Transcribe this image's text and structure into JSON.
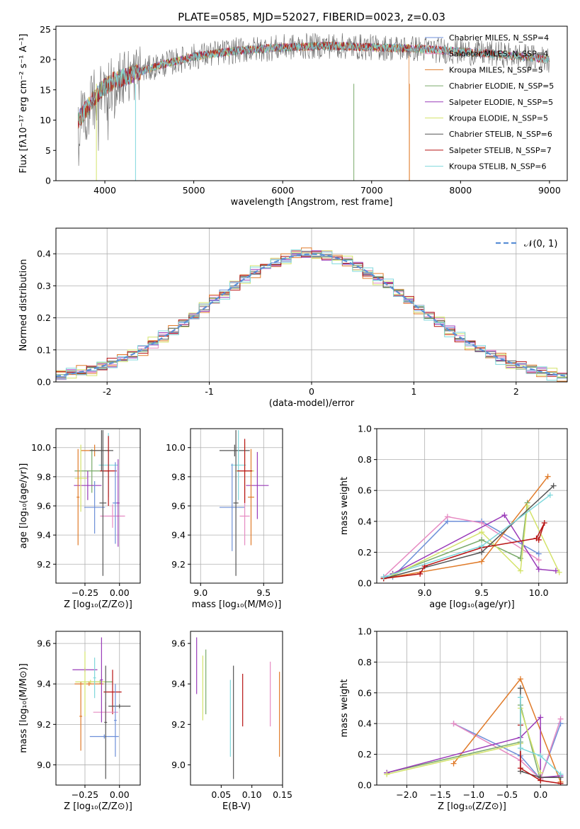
{
  "title": "PLATE=0585, MJD=52027, FIBERID=0023, z=0.03",
  "colors": [
    "#6d8fd8",
    "#e68bc2",
    "#e07b2a",
    "#7aaa6a",
    "#9a3bb9",
    "#d4e36b",
    "#555555",
    "#b81414",
    "#7fd8dc"
  ],
  "chart_data": [
    {
      "id": "spectrum",
      "type": "line",
      "xlabel": "wavelength [Angstrom, rest frame]",
      "ylabel": "Flux [fλ10⁻¹⁷ erg cm⁻² s⁻¹ A⁻¹]",
      "xlim": [
        3450,
        9200
      ],
      "ylim": [
        0,
        25.5
      ],
      "xticks": [
        4000,
        5000,
        6000,
        7000,
        8000,
        9000
      ],
      "yticks": [
        0,
        5,
        10,
        15,
        20,
        25
      ],
      "legend_position": "top-right",
      "grid": false,
      "continuum": [
        [
          3700,
          10
        ],
        [
          3800,
          12
        ],
        [
          3900,
          14
        ],
        [
          4000,
          15.5
        ],
        [
          4100,
          16.5
        ],
        [
          4300,
          17.5
        ],
        [
          4600,
          19
        ],
        [
          5000,
          20.5
        ],
        [
          5500,
          21.5
        ],
        [
          6000,
          22
        ],
        [
          6500,
          22.3
        ],
        [
          7000,
          22
        ],
        [
          7500,
          21.8
        ],
        [
          8000,
          21.3
        ],
        [
          8500,
          20.8
        ],
        [
          9000,
          20
        ]
      ],
      "series": [
        {
          "name": "Chabrier MILES, N_SSP=4"
        },
        {
          "name": "Salpeter MILES, N_SSP=4"
        },
        {
          "name": "Kroupa MILES, N_SSP=5"
        },
        {
          "name": "Chabrier ELODIE, N_SSP=5"
        },
        {
          "name": "Salpeter ELODIE, N_SSP=5"
        },
        {
          "name": "Kroupa ELODIE, N_SSP=5"
        },
        {
          "name": "Chabrier STELIB, N_SSP=6"
        },
        {
          "name": "Salpeter STELIB, N_SSP=7"
        },
        {
          "name": "Kroupa STELIB, N_SSP=6"
        }
      ]
    },
    {
      "id": "residual-hist",
      "type": "line",
      "xlabel": "(data-model)/error",
      "ylabel": "Normed distribution",
      "xlim": [
        -2.5,
        2.5
      ],
      "ylim": [
        0,
        0.48
      ],
      "xticks": [
        -2,
        -1,
        0,
        1,
        2
      ],
      "yticks": [
        0.0,
        0.1,
        0.2,
        0.3,
        0.4
      ],
      "grid": true,
      "legend_position": "top-right",
      "normal_label": "𝒩(0, 1)",
      "bin_width": 0.1,
      "hist_offsets": [
        0.003,
        -0.004,
        0.006,
        -0.007,
        0.009,
        -0.002,
        0.005,
        -0.008,
        0.004,
        0.002,
        -0.006,
        0.007,
        -0.003,
        0.008,
        -0.005,
        0.001,
        -0.009,
        0.006,
        -0.002,
        0.004,
        -0.006,
        0.003,
        0.009,
        -0.004,
        0.005,
        -0.007,
        0.002,
        -0.003,
        0.006,
        -0.008,
        0.001,
        0.004,
        -0.005,
        0.008,
        -0.002,
        0.007,
        -0.006,
        0.003,
        -0.009,
        0.005,
        0.002,
        -0.004,
        0.006,
        -0.001,
        0.009,
        -0.007,
        0.003,
        -0.005,
        0.004,
        0.008
      ]
    },
    {
      "id": "age-vs-Z",
      "type": "scatter",
      "xlabel": "Z [log₁₀(Z/Z⊙)]",
      "ylabel": "age  [log₁₀(age/yr)]",
      "xlim": [
        -0.46,
        0.15
      ],
      "ylim": [
        9.07,
        10.13
      ],
      "xticks": [
        -0.25,
        0.0
      ],
      "xticklabels": [
        "−0.25",
        "0.00"
      ],
      "yticks": [
        9.2,
        9.4,
        9.6,
        9.8,
        10.0
      ],
      "grid": true,
      "points": [
        {
          "x": -0.08,
          "xe": 0.14,
          "y": 9.88,
          "ye": 0.22,
          "c": 8
        },
        {
          "x": -0.05,
          "xe": 0.18,
          "y": 9.53,
          "ye": 0.08,
          "c": 1
        },
        {
          "x": -0.18,
          "xe": 0.2,
          "y": 9.98,
          "ye": 0.04,
          "c": 2
        },
        {
          "x": -0.2,
          "xe": 0.25,
          "y": 9.84,
          "ye": 0.15,
          "c": 3
        },
        {
          "x": -0.23,
          "xe": 0.2,
          "y": 9.74,
          "ye": 0.1,
          "c": 4
        },
        {
          "x": -0.28,
          "xe": 0.09,
          "y": 9.79,
          "ye": 0.23,
          "c": 5
        },
        {
          "x": -0.13,
          "xe": 0.17,
          "y": 9.98,
          "ye": 0.14,
          "c": 6
        },
        {
          "x": -0.08,
          "xe": 0.12,
          "y": 9.84,
          "ye": 0.24,
          "c": 7
        },
        {
          "x": -0.18,
          "xe": 0.15,
          "y": 9.59,
          "ye": 0.18,
          "c": 0
        },
        {
          "x": -0.12,
          "xe": 0.05,
          "y": 9.62,
          "ye": 0.5,
          "c": 6
        },
        {
          "x": -0.03,
          "xe": 0.04,
          "y": 9.62,
          "ye": 0.28,
          "c": 0
        },
        {
          "x": -0.3,
          "xe": 0.02,
          "y": 9.66,
          "ye": 0.33,
          "c": 2
        },
        {
          "x": -0.01,
          "xe": 0.02,
          "y": 9.62,
          "ye": 0.3,
          "c": 4
        }
      ]
    },
    {
      "id": "age-vs-mass",
      "type": "scatter",
      "xlabel": "mass [log₁₀(M/M⊙)]",
      "ylabel": "",
      "xlim": [
        8.92,
        9.65
      ],
      "ylim": [
        9.07,
        10.13
      ],
      "xticks": [
        9.0,
        9.5
      ],
      "yticks": [
        9.2,
        9.4,
        9.6,
        9.8,
        10.0
      ],
      "grid": true,
      "points": [
        {
          "x": 9.27,
          "xe": 0.24,
          "y": 9.98,
          "ye": 0.04,
          "c": 6
        },
        {
          "x": 9.45,
          "xe": 0.18,
          "y": 9.74,
          "ye": 0.23,
          "c": 4
        },
        {
          "x": 9.35,
          "xe": 0.15,
          "y": 9.84,
          "ye": 0.2,
          "c": 5
        },
        {
          "x": 9.3,
          "xe": 0.12,
          "y": 9.88,
          "ye": 0.24,
          "c": 8
        },
        {
          "x": 9.25,
          "xe": 0.2,
          "y": 9.59,
          "ye": 0.3,
          "c": 0
        },
        {
          "x": 9.35,
          "xe": 0.08,
          "y": 9.53,
          "ye": 0.2,
          "c": 1
        },
        {
          "x": 9.4,
          "xe": 0.05,
          "y": 9.66,
          "ye": 0.33,
          "c": 2
        },
        {
          "x": 9.28,
          "xe": 0.04,
          "y": 9.62,
          "ye": 0.5,
          "c": 6
        },
        {
          "x": 9.35,
          "xe": 0.12,
          "y": 9.84,
          "ye": 0.22,
          "c": 7
        }
      ]
    },
    {
      "id": "weight-vs-age",
      "type": "line",
      "xlabel": "age  [log₁₀(age/yr)]",
      "ylabel": "mass weight",
      "xlim": [
        8.58,
        10.25
      ],
      "ylim": [
        0,
        1.0
      ],
      "xticks": [
        9.0,
        9.5,
        10.0
      ],
      "yticks": [
        0.0,
        0.2,
        0.4,
        0.6,
        0.8,
        1.0
      ],
      "grid": true,
      "series": [
        {
          "c": 0,
          "x": [
            8.64,
            8.72,
            9.2,
            9.5,
            10.0
          ],
          "y": [
            0.04,
            0.04,
            0.4,
            0.4,
            0.19
          ]
        },
        {
          "c": 1,
          "x": [
            8.64,
            9.2,
            9.5,
            10.0
          ],
          "y": [
            0.04,
            0.43,
            0.39,
            0.15
          ]
        },
        {
          "c": 2,
          "x": [
            8.64,
            9.5,
            10.08
          ],
          "y": [
            0.03,
            0.14,
            0.69
          ]
        },
        {
          "c": 3,
          "x": [
            8.72,
            9.5,
            9.84,
            9.9
          ],
          "y": [
            0.06,
            0.28,
            0.16,
            0.52
          ]
        },
        {
          "c": 4,
          "x": [
            8.72,
            9.7,
            10.0,
            10.15
          ],
          "y": [
            0.06,
            0.44,
            0.09,
            0.08
          ]
        },
        {
          "c": 5,
          "x": [
            8.72,
            9.5,
            9.84,
            9.9,
            10.18
          ],
          "y": [
            0.05,
            0.33,
            0.08,
            0.5,
            0.07
          ]
        },
        {
          "c": 6,
          "x": [
            8.64,
            9.5,
            10.13
          ],
          "y": [
            0.03,
            0.2,
            0.63
          ]
        },
        {
          "c": 7,
          "x": [
            8.64,
            8.96,
            9.0,
            9.5,
            9.98,
            10.05,
            10.0
          ],
          "y": [
            0.03,
            0.06,
            0.11,
            0.23,
            0.29,
            0.39,
            0.28
          ]
        },
        {
          "c": 8,
          "x": [
            8.64,
            9.5,
            10.1
          ],
          "y": [
            0.04,
            0.24,
            0.57
          ]
        }
      ]
    },
    {
      "id": "mass-vs-Z",
      "type": "scatter",
      "xlabel": "Z [log₁₀(Z/Z⊙)]",
      "ylabel": "mass [log₁₀(M/M⊙)]",
      "xlim": [
        -0.46,
        0.15
      ],
      "ylim": [
        8.9,
        9.66
      ],
      "xticks": [
        -0.25,
        0.0
      ],
      "xticklabels": [
        "−0.25",
        "0.00"
      ],
      "yticks": [
        9.0,
        9.2,
        9.4,
        9.6
      ],
      "grid": true,
      "points": [
        {
          "x": -0.25,
          "xe": 0.18,
          "y": 9.47,
          "ye": 0.01,
          "c": 4
        },
        {
          "x": -0.14,
          "xe": 0.18,
          "y": 9.41,
          "ye": 0.01,
          "c": 3
        },
        {
          "x": -0.21,
          "xe": 0.22,
          "y": 9.41,
          "ye": 0.01,
          "c": 5
        },
        {
          "x": -0.22,
          "xe": 0.21,
          "y": 9.4,
          "ye": 0.01,
          "c": 2
        },
        {
          "x": -0.05,
          "xe": 0.13,
          "y": 9.36,
          "ye": 0.11,
          "c": 7
        },
        {
          "x": -0.1,
          "xe": 0.18,
          "y": 9.26,
          "ye": 0.05,
          "c": 1
        },
        {
          "x": 0.0,
          "xe": 0.16,
          "y": 9.29,
          "ye": 0.01,
          "c": 6
        },
        {
          "x": -0.11,
          "xe": 0.21,
          "y": 9.14,
          "ye": 0.01,
          "c": 0
        },
        {
          "x": -0.25,
          "xe": 0.02,
          "y": 9.4,
          "ye": 0.16,
          "c": 5
        },
        {
          "x": -0.28,
          "xe": 0.02,
          "y": 9.24,
          "ye": 0.17,
          "c": 2
        },
        {
          "x": -0.13,
          "xe": 0.02,
          "y": 9.42,
          "ye": 0.21,
          "c": 4
        },
        {
          "x": -0.1,
          "xe": 0.02,
          "y": 9.21,
          "ye": 0.28,
          "c": 6
        },
        {
          "x": -0.03,
          "xe": 0.02,
          "y": 9.22,
          "ye": 0.18,
          "c": 0
        },
        {
          "x": -0.18,
          "xe": 0.02,
          "y": 9.43,
          "ye": 0.1,
          "c": 8
        }
      ]
    },
    {
      "id": "mass-vs-ebv",
      "type": "scatter",
      "xlabel": "E(B-V)",
      "ylabel": "",
      "xlim": [
        0.0,
        0.15
      ],
      "ylim": [
        8.9,
        9.66
      ],
      "xticks": [
        0.05,
        0.1,
        0.15
      ],
      "yticks": [
        9.0,
        9.2,
        9.4,
        9.6
      ],
      "grid": false,
      "points": [
        {
          "x": 0.01,
          "y": 9.49,
          "ye": 0.14,
          "c": 4
        },
        {
          "x": 0.02,
          "y": 9.38,
          "ye": 0.16,
          "c": 5
        },
        {
          "x": 0.025,
          "y": 9.41,
          "ye": 0.16,
          "c": 3
        },
        {
          "x": 0.065,
          "y": 9.23,
          "ye": 0.19,
          "c": 8
        },
        {
          "x": 0.07,
          "y": 9.21,
          "ye": 0.28,
          "c": 6
        },
        {
          "x": 0.085,
          "y": 9.32,
          "ye": 0.13,
          "c": 7
        },
        {
          "x": 0.13,
          "y": 9.35,
          "ye": 0.16,
          "c": 1
        },
        {
          "x": 0.145,
          "y": 9.25,
          "ye": 0.21,
          "c": 2
        }
      ]
    },
    {
      "id": "weight-vs-Z",
      "type": "line",
      "xlabel": "Z [log₁₀(Z/Z⊙)]",
      "ylabel": "mass weight",
      "xlim": [
        -2.45,
        0.4
      ],
      "ylim": [
        0,
        1.0
      ],
      "xticks": [
        -2.0,
        -1.5,
        -1.0,
        -0.5,
        0.0
      ],
      "xticklabels": [
        "−2.0",
        "−1.5",
        "−1.0",
        "−0.5",
        "0.0"
      ],
      "yticks": [
        0.0,
        0.2,
        0.4,
        0.6,
        0.8,
        1.0
      ],
      "grid": true,
      "series": [
        {
          "c": 0,
          "x": [
            -1.3,
            -0.3,
            0.0,
            0.3
          ],
          "y": [
            0.4,
            0.19,
            0.04,
            0.4
          ]
        },
        {
          "c": 1,
          "x": [
            -1.3,
            -0.3,
            0.0,
            0.3
          ],
          "y": [
            0.4,
            0.16,
            0.04,
            0.43
          ]
        },
        {
          "c": 2,
          "x": [
            -1.3,
            -0.3,
            0.3
          ],
          "y": [
            0.14,
            0.69,
            0.02
          ]
        },
        {
          "c": 3,
          "x": [
            -2.3,
            -0.3,
            -0.3,
            0.0
          ],
          "y": [
            0.08,
            0.28,
            0.52,
            0.03
          ]
        },
        {
          "c": 4,
          "x": [
            -2.3,
            -0.3,
            0.0,
            0.0,
            0.3
          ],
          "y": [
            0.08,
            0.31,
            0.44,
            0.05,
            0.06
          ]
        },
        {
          "c": 5,
          "x": [
            -2.3,
            -0.3,
            -0.3,
            0.0
          ],
          "y": [
            0.07,
            0.27,
            0.5,
            0.08
          ]
        },
        {
          "c": 6,
          "x": [
            -0.3,
            -0.3,
            0.0,
            0.3
          ],
          "y": [
            0.63,
            0.09,
            0.05,
            0.05
          ]
        },
        {
          "c": 7,
          "x": [
            -0.3,
            -0.3,
            0.0,
            0.3
          ],
          "y": [
            0.39,
            0.11,
            0.03,
            0.01
          ]
        },
        {
          "c": 8,
          "x": [
            -0.3,
            -0.3,
            0.0,
            0.3
          ],
          "y": [
            0.57,
            0.24,
            0.19,
            0.07
          ]
        }
      ]
    }
  ]
}
